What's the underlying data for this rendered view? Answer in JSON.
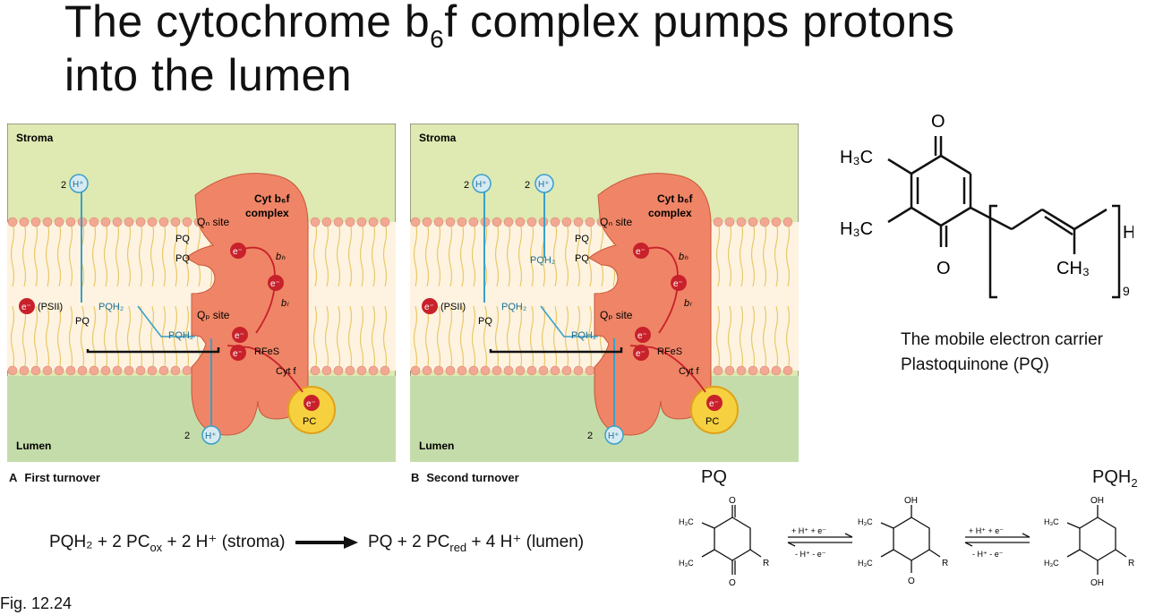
{
  "slide": {
    "title_line1_pre": "The cytochrome b",
    "title_sub": "6",
    "title_line1_post": "f complex pumps protons",
    "title_line2": "into the lumen",
    "figure_ref": "Fig. 12.24"
  },
  "panels": [
    {
      "letter": "A",
      "caption": "First turnover",
      "stroma": "Stroma",
      "lumen": "Lumen",
      "complex_l1": "Cyt b₆f",
      "complex_l2": "complex",
      "qn_site": "Qₙ site",
      "qp_site": "Qₚ site",
      "psii": "(PSII)",
      "h_in": "H⁺",
      "h_count": "2",
      "pqh2": "PQH₂",
      "pq": "PQ",
      "bh": "bₕ",
      "bl": "bₗ",
      "rfes": "RFeS",
      "cytf": "Cyt f",
      "pc": "PC",
      "e": "e⁻"
    },
    {
      "letter": "B",
      "caption": "Second turnover",
      "stroma": "Stroma",
      "lumen": "Lumen",
      "complex_l1": "Cyt b₆f",
      "complex_l2": "complex",
      "qn_site": "Qₙ site",
      "qp_site": "Qₚ site",
      "psii": "(PSII)",
      "h_in": "H⁺",
      "h_count": "2",
      "pqh2": "PQH₂",
      "pq": "PQ",
      "bh": "bₕ",
      "bl": "bₗ",
      "rfes": "RFeS",
      "cytf": "Cyt f",
      "pc": "PC",
      "e": "e⁻"
    }
  ],
  "equation": {
    "left": "PQH₂ + 2 PC",
    "left_sub": "ox",
    "left_post": " + 2 H⁺ (stroma)",
    "right": "PQ + 2 PC",
    "right_sub": "red",
    "right_post": " + 4 H⁺ (lumen)"
  },
  "structure": {
    "o_top": "O",
    "o_bottom": "O",
    "h3c_1": "H₃C",
    "h3c_2": "H₃C",
    "ch3": "CH₃",
    "h_end": "H",
    "repeat": "9",
    "caption_l1": "The mobile electron carrier",
    "caption_l2": "Plastoquinone (PQ)"
  },
  "redox": {
    "label_pq": "PQ",
    "label_pqh2": "PQH",
    "label_pqh2_sub": "2",
    "step1_fwd": "+ H⁺ + e⁻",
    "step1_rev": "- H⁺ - e⁻",
    "step2_fwd": "+ H⁺ + e⁻",
    "step2_rev": "- H⁺ - e⁻",
    "h3c": "H₃C",
    "r": "R",
    "o": "O",
    "oh": "OH"
  },
  "colors": {
    "stroma": "#dfe9b2",
    "lumen": "#c4dcaa",
    "complex": "#ef8566",
    "lipid_head": "#f2a893",
    "electron": "#c8212b",
    "proton": "#3aa0c8",
    "pc": "#f7d040"
  }
}
